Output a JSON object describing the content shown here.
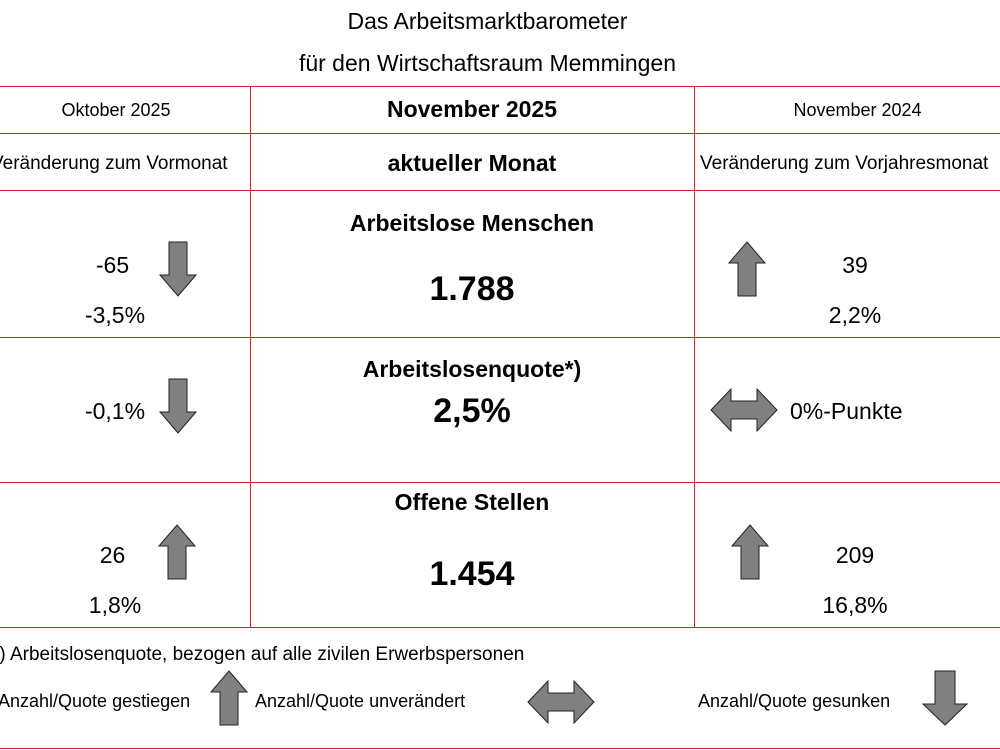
{
  "title": {
    "line1": "Das Arbeitsmarktbarometer",
    "line2": "für den Wirtschaftsraum Memmingen"
  },
  "header": {
    "left_month": "Oktober 2025",
    "center_month": "November 2025",
    "right_month": "November 2024",
    "left_sub": "Veränderung zum Vormonat",
    "center_sub": "aktueller Monat",
    "right_sub": "Veränderung zum Vorjahresmonat"
  },
  "rows": [
    {
      "label": "Arbeitslose Menschen",
      "value": "1.788",
      "prev_month_abs": "-65",
      "prev_month_pct": "-3,5%",
      "prev_month_trend": "down",
      "prev_year_abs": "39",
      "prev_year_pct": "2,2%",
      "prev_year_trend": "up"
    },
    {
      "label": "Arbeitslosenquote*)",
      "value": "2,5%",
      "prev_month_pct": "-0,1%",
      "prev_month_trend": "down",
      "prev_year_pct": "0%-Punkte",
      "prev_year_trend": "unchanged"
    },
    {
      "label": "Offene Stellen",
      "value": "1.454",
      "prev_month_abs": "26",
      "prev_month_pct": "1,8%",
      "prev_month_trend": "up",
      "prev_year_abs": "209",
      "prev_year_pct": "16,8%",
      "prev_year_trend": "up"
    }
  ],
  "footnote": "*) Arbeitslosenquote, bezogen auf alle zivilen Erwerbspersonen",
  "legend": {
    "up": "Anzahl/Quote gestiegen",
    "unchanged": "Anzahl/Quote unverändert",
    "down": "Anzahl/Quote gesunken"
  },
  "colors": {
    "grid_line": "#d9202a",
    "arrow_fill": "#808080"
  },
  "icons": {
    "up": "arrow-up-icon",
    "down": "arrow-down-icon",
    "unchanged": "arrow-left-right-icon"
  }
}
